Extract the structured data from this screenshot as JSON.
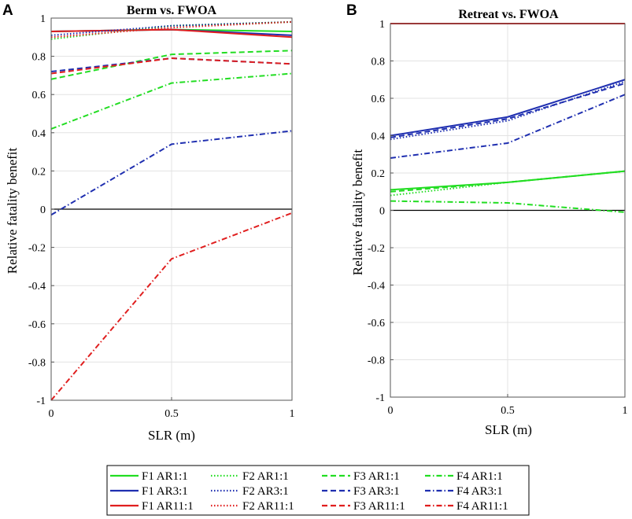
{
  "chart_data": [
    {
      "type": "line",
      "panel_letter": "A",
      "title": "Berm vs. FWOA",
      "xlabel": "SLR (m)",
      "ylabel": "Relative fatality benefit",
      "xlim": [
        0,
        1
      ],
      "ylim": [
        -1,
        1
      ],
      "xticks": [
        "0",
        "0.5",
        "1"
      ],
      "yticks": [
        "-1",
        "-0.8",
        "-0.6",
        "-0.4",
        "-0.2",
        "0",
        "0.2",
        "0.4",
        "0.6",
        "0.8",
        "1"
      ],
      "grid": true,
      "x": [
        0,
        0.5,
        1
      ],
      "series": [
        {
          "name": "F1 AR1:1",
          "values": [
            0.93,
            0.94,
            0.93
          ],
          "color": "#22dd22",
          "dash": "solid"
        },
        {
          "name": "F1 AR3:1",
          "values": [
            0.93,
            0.94,
            0.91
          ],
          "color": "#1f2fb0",
          "dash": "solid"
        },
        {
          "name": "F1 AR11:1",
          "values": [
            0.93,
            0.94,
            0.9
          ],
          "color": "#e01f1f",
          "dash": "solid"
        },
        {
          "name": "F2 AR1:1",
          "values": [
            0.89,
            0.96,
            0.98
          ],
          "color": "#22dd22",
          "dash": "dotted"
        },
        {
          "name": "F2 AR3:1",
          "values": [
            0.91,
            0.96,
            0.98
          ],
          "color": "#1f2fb0",
          "dash": "dotted"
        },
        {
          "name": "F2 AR11:1",
          "values": [
            0.9,
            0.95,
            0.98
          ],
          "color": "#e01f1f",
          "dash": "dotted"
        },
        {
          "name": "F3 AR1:1",
          "values": [
            0.68,
            0.81,
            0.83
          ],
          "color": "#22dd22",
          "dash": "dashed"
        },
        {
          "name": "F3 AR3:1",
          "values": [
            0.72,
            0.79,
            0.76
          ],
          "color": "#1f2fb0",
          "dash": "dashed"
        },
        {
          "name": "F3 AR11:1",
          "values": [
            0.71,
            0.79,
            0.76
          ],
          "color": "#e01f1f",
          "dash": "dashed"
        },
        {
          "name": "F4 AR1:1",
          "values": [
            0.42,
            0.66,
            0.71
          ],
          "color": "#22dd22",
          "dash": "dashdot"
        },
        {
          "name": "F4 AR3:1",
          "values": [
            -0.03,
            0.34,
            0.41
          ],
          "color": "#1f2fb0",
          "dash": "dashdot"
        },
        {
          "name": "F4 AR11:1",
          "values": [
            -1.0,
            -0.26,
            -0.02
          ],
          "color": "#e01f1f",
          "dash": "dashdot"
        }
      ]
    },
    {
      "type": "line",
      "panel_letter": "B",
      "title": "Retreat vs. FWOA",
      "xlabel": "SLR (m)",
      "ylabel": "Relative fatality benefit",
      "xlim": [
        0,
        1
      ],
      "ylim": [
        -1,
        1
      ],
      "xticks": [
        "0",
        "0.5",
        "1"
      ],
      "yticks": [
        "-1",
        "-0.8",
        "-0.6",
        "-0.4",
        "-0.2",
        "0",
        "0.2",
        "0.4",
        "0.6",
        "0.8",
        "1"
      ],
      "grid": true,
      "x": [
        0,
        0.5,
        1
      ],
      "series": [
        {
          "name": "F1 AR1:1",
          "values": [
            0.11,
            0.15,
            0.21
          ],
          "color": "#22dd22",
          "dash": "solid"
        },
        {
          "name": "F1 AR3:1",
          "values": [
            0.4,
            0.5,
            0.7
          ],
          "color": "#1f2fb0",
          "dash": "solid"
        },
        {
          "name": "F1 AR11:1",
          "values": [
            1.0,
            1.0,
            1.0
          ],
          "color": "#e01f1f",
          "dash": "solid"
        },
        {
          "name": "F2 AR1:1",
          "values": [
            0.08,
            0.15,
            0.21
          ],
          "color": "#22dd22",
          "dash": "dotted"
        },
        {
          "name": "F2 AR3:1",
          "values": [
            0.38,
            0.48,
            0.69
          ],
          "color": "#1f2fb0",
          "dash": "dotted"
        },
        {
          "name": "F2 AR11:1",
          "values": [
            1.0,
            1.0,
            1.0
          ],
          "color": "#e01f1f",
          "dash": "dotted"
        },
        {
          "name": "F3 AR1:1",
          "values": [
            0.1,
            0.15,
            0.21
          ],
          "color": "#22dd22",
          "dash": "dashed"
        },
        {
          "name": "F3 AR3:1",
          "values": [
            0.39,
            0.49,
            0.68
          ],
          "color": "#1f2fb0",
          "dash": "dashed"
        },
        {
          "name": "F3 AR11:1",
          "values": [
            1.0,
            1.0,
            1.0
          ],
          "color": "#e01f1f",
          "dash": "dashed"
        },
        {
          "name": "F4 AR1:1",
          "values": [
            0.05,
            0.04,
            -0.01
          ],
          "color": "#22dd22",
          "dash": "dashdot"
        },
        {
          "name": "F4 AR3:1",
          "values": [
            0.28,
            0.36,
            0.62
          ],
          "color": "#1f2fb0",
          "dash": "dashdot"
        },
        {
          "name": "F4 AR11:1",
          "values": [
            1.0,
            1.0,
            1.0
          ],
          "color": "#e01f1f",
          "dash": "dashdot"
        }
      ]
    }
  ],
  "legend": {
    "placement": "bottom",
    "entries": [
      {
        "label": "F1 AR1:1",
        "color": "#22dd22",
        "dash": "solid"
      },
      {
        "label": "F2 AR1:1",
        "color": "#22dd22",
        "dash": "dotted"
      },
      {
        "label": "F3 AR1:1",
        "color": "#22dd22",
        "dash": "dashed"
      },
      {
        "label": "F4 AR1:1",
        "color": "#22dd22",
        "dash": "dashdot"
      },
      {
        "label": "F1 AR3:1",
        "color": "#1f2fb0",
        "dash": "solid"
      },
      {
        "label": "F2 AR3:1",
        "color": "#1f2fb0",
        "dash": "dotted"
      },
      {
        "label": "F3 AR3:1",
        "color": "#1f2fb0",
        "dash": "dashed"
      },
      {
        "label": "F4 AR3:1",
        "color": "#1f2fb0",
        "dash": "dashdot"
      },
      {
        "label": "F1 AR11:1",
        "color": "#e01f1f",
        "dash": "solid"
      },
      {
        "label": "F2 AR11:1",
        "color": "#e01f1f",
        "dash": "dotted"
      },
      {
        "label": "F3 AR11:1",
        "color": "#e01f1f",
        "dash": "dashed"
      },
      {
        "label": "F4 AR11:1",
        "color": "#e01f1f",
        "dash": "dashdot"
      }
    ]
  }
}
